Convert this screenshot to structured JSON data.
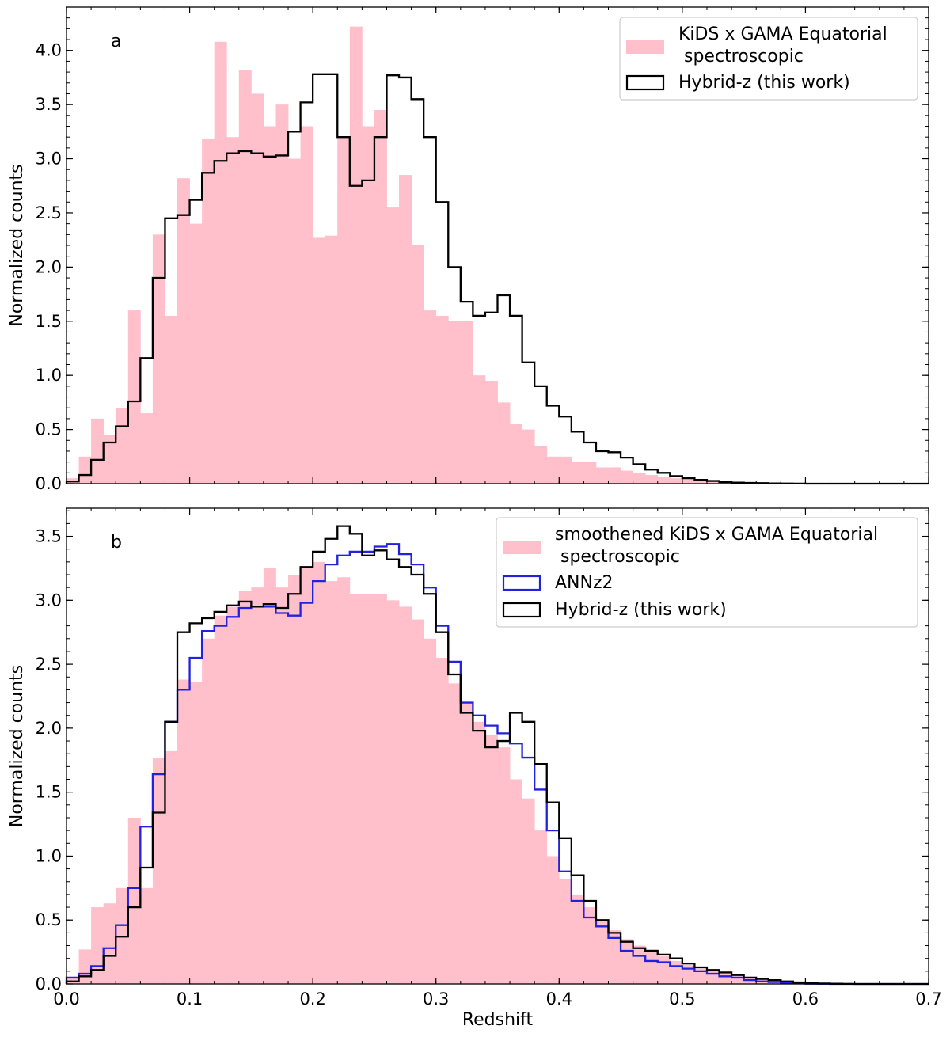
{
  "chart_data": [
    {
      "id": "a",
      "type": "histogram",
      "panel_label": "a",
      "xlabel": "",
      "ylabel": "Normalized counts",
      "xlim": [
        0.0,
        0.7
      ],
      "ylim": [
        0.0,
        4.4
      ],
      "xticks": [
        0.0,
        0.1,
        0.2,
        0.3,
        0.4,
        0.5,
        0.6,
        0.7
      ],
      "show_xtick_labels": false,
      "yticks": [
        0.0,
        0.5,
        1.0,
        1.5,
        2.0,
        2.5,
        3.0,
        3.5,
        4.0
      ],
      "yticklabels": [
        "0.0",
        "0.5",
        "1.0",
        "1.5",
        "2.0",
        "2.5",
        "3.0",
        "3.5",
        "4.0"
      ],
      "bin_width": 0.01,
      "legend_position": "top-right",
      "legend": [
        {
          "label": "KiDS x GAMA Equatorial",
          "label2": "spectroscopic",
          "style": "filled",
          "color": "#ffc0cb"
        },
        {
          "label": "Hybrid-z (this work)",
          "style": "step",
          "color": "#000000"
        }
      ],
      "series": [
        {
          "name": "KiDS x GAMA Equatorial spectroscopic",
          "style": "filled",
          "color": "#ffc0cb",
          "values": [
            0.05,
            0.25,
            0.6,
            0.45,
            0.7,
            1.6,
            0.65,
            2.3,
            1.55,
            2.82,
            2.4,
            3.18,
            4.08,
            3.2,
            3.82,
            3.6,
            3.3,
            3.5,
            3.0,
            3.3,
            2.27,
            2.29,
            3.2,
            4.22,
            3.3,
            3.45,
            2.55,
            2.85,
            2.2,
            1.6,
            1.55,
            1.5,
            1.5,
            1.0,
            0.95,
            0.75,
            0.55,
            0.5,
            0.35,
            0.25,
            0.25,
            0.2,
            0.2,
            0.15,
            0.15,
            0.12,
            0.1,
            0.08,
            0.06,
            0.05,
            0.04,
            0.03,
            0.02,
            0.02,
            0.01,
            0.01,
            0.005,
            0.005,
            0.0,
            0.0,
            0.0,
            0.0,
            0.0,
            0.0,
            0.0,
            0.0,
            0.0,
            0.0,
            0.0,
            0.0
          ]
        },
        {
          "name": "Hybrid-z (this work)",
          "style": "step",
          "color": "#000000",
          "values": [
            0.02,
            0.08,
            0.22,
            0.38,
            0.53,
            0.76,
            1.16,
            1.9,
            2.45,
            2.48,
            2.62,
            2.87,
            2.98,
            3.05,
            3.07,
            3.05,
            3.02,
            3.03,
            3.25,
            3.52,
            3.78,
            3.78,
            3.2,
            2.75,
            2.8,
            3.2,
            3.77,
            3.75,
            3.55,
            3.2,
            2.6,
            2.0,
            1.68,
            1.55,
            1.58,
            1.74,
            1.55,
            1.12,
            0.9,
            0.72,
            0.62,
            0.48,
            0.38,
            0.3,
            0.29,
            0.24,
            0.18,
            0.13,
            0.1,
            0.07,
            0.05,
            0.035,
            0.025,
            0.015,
            0.01,
            0.007,
            0.005,
            0.003,
            0.002,
            0.001,
            0.0,
            0.0,
            0.0,
            0.0,
            0.0,
            0.0,
            0.0,
            0.0,
            0.0,
            0.0
          ]
        }
      ]
    },
    {
      "id": "b",
      "type": "histogram",
      "panel_label": "b",
      "xlabel": "Redshift",
      "ylabel": "Normalized counts",
      "xlim": [
        0.0,
        0.7
      ],
      "ylim": [
        0.0,
        3.72
      ],
      "xticks": [
        0.0,
        0.1,
        0.2,
        0.3,
        0.4,
        0.5,
        0.6,
        0.7
      ],
      "xticklabels": [
        "0.0",
        "0.1",
        "0.2",
        "0.3",
        "0.4",
        "0.5",
        "0.6",
        "0.7"
      ],
      "show_xtick_labels": true,
      "yticks": [
        0.0,
        0.5,
        1.0,
        1.5,
        2.0,
        2.5,
        3.0,
        3.5
      ],
      "yticklabels": [
        "0.0",
        "0.5",
        "1.0",
        "1.5",
        "2.0",
        "2.5",
        "3.0",
        "3.5"
      ],
      "bin_width": 0.01,
      "legend_position": "top-right",
      "legend": [
        {
          "label": "smoothened KiDS x GAMA Equatorial",
          "label2": "spectroscopic",
          "style": "filled",
          "color": "#ffc0cb"
        },
        {
          "label": "ANNz2",
          "style": "step",
          "color": "#2222dd"
        },
        {
          "label": "Hybrid-z (this work)",
          "style": "step",
          "color": "#000000"
        }
      ],
      "series": [
        {
          "name": "smoothened KiDS x GAMA Equatorial spectroscopic",
          "style": "filled",
          "color": "#ffc0cb",
          "values": [
            0.05,
            0.27,
            0.6,
            0.63,
            0.75,
            1.3,
            0.75,
            1.77,
            1.82,
            2.38,
            2.36,
            2.7,
            2.88,
            2.95,
            3.07,
            3.1,
            3.25,
            3.1,
            3.2,
            3.25,
            3.3,
            3.15,
            3.18,
            3.05,
            3.05,
            3.05,
            3.0,
            2.95,
            2.85,
            2.7,
            2.55,
            2.35,
            2.2,
            2.05,
            1.95,
            1.85,
            1.6,
            1.45,
            1.2,
            1.0,
            0.82,
            0.7,
            0.6,
            0.5,
            0.42,
            0.35,
            0.3,
            0.27,
            0.22,
            0.18,
            0.15,
            0.12,
            0.1,
            0.08,
            0.06,
            0.05,
            0.04,
            0.03,
            0.02,
            0.015,
            0.01,
            0.007,
            0.005,
            0.003,
            0.002,
            0.001,
            0.0,
            0.0,
            0.0,
            0.0
          ]
        },
        {
          "name": "ANNz2",
          "style": "step",
          "color": "#2222dd",
          "values": [
            0.05,
            0.08,
            0.14,
            0.28,
            0.46,
            0.75,
            1.23,
            1.64,
            2.05,
            2.3,
            2.55,
            2.76,
            2.8,
            2.87,
            2.94,
            2.95,
            2.95,
            2.9,
            2.88,
            2.98,
            3.15,
            3.28,
            3.35,
            3.38,
            3.38,
            3.42,
            3.44,
            3.36,
            3.28,
            3.1,
            2.8,
            2.52,
            2.2,
            2.1,
            2.02,
            1.96,
            1.88,
            1.77,
            1.52,
            1.2,
            0.88,
            0.65,
            0.52,
            0.45,
            0.36,
            0.26,
            0.22,
            0.18,
            0.17,
            0.14,
            0.12,
            0.1,
            0.08,
            0.06,
            0.05,
            0.03,
            0.02,
            0.015,
            0.01,
            0.005,
            0.002,
            0.001,
            0.0,
            0.0,
            0.0,
            0.0,
            0.0,
            0.0,
            0.0,
            0.0
          ]
        },
        {
          "name": "Hybrid-z (this work)",
          "style": "step",
          "color": "#000000",
          "values": [
            0.02,
            0.06,
            0.11,
            0.22,
            0.37,
            0.6,
            0.91,
            1.34,
            2.05,
            2.75,
            2.82,
            2.86,
            2.91,
            2.96,
            2.99,
            2.95,
            2.97,
            2.94,
            3.05,
            3.26,
            3.38,
            3.48,
            3.58,
            3.52,
            3.35,
            3.39,
            3.32,
            3.26,
            3.2,
            3.05,
            2.75,
            2.42,
            2.12,
            1.98,
            1.85,
            1.9,
            2.12,
            2.05,
            1.72,
            1.42,
            1.14,
            0.85,
            0.65,
            0.5,
            0.4,
            0.33,
            0.28,
            0.26,
            0.23,
            0.2,
            0.16,
            0.13,
            0.11,
            0.09,
            0.07,
            0.05,
            0.04,
            0.03,
            0.02,
            0.012,
            0.007,
            0.004,
            0.002,
            0.001,
            0.0,
            0.0,
            0.0,
            0.0,
            0.0,
            0.0
          ]
        }
      ]
    }
  ]
}
